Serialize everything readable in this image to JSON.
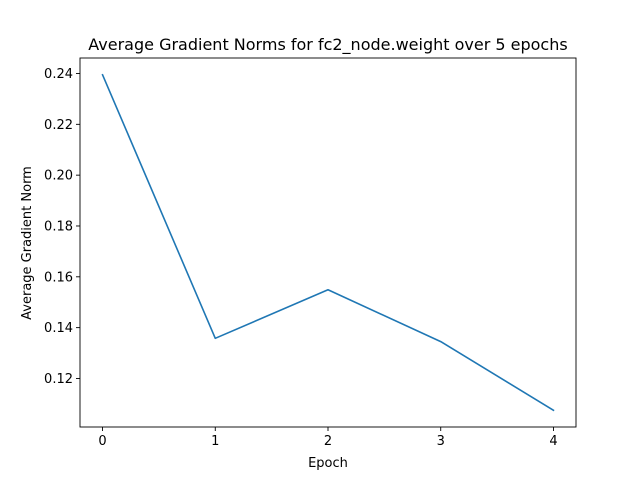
{
  "chart_data": {
    "type": "line",
    "title": "Average Gradient Norms for fc2_node.weight over 5 epochs",
    "xlabel": "Epoch",
    "ylabel": "Average Gradient Norm",
    "x": [
      0,
      1,
      2,
      3,
      4
    ],
    "series": [
      {
        "values": [
          0.2395,
          0.1358,
          0.1549,
          0.1345,
          0.1075
        ],
        "color": "#1f77b4"
      }
    ],
    "xlim": [
      -0.2,
      4.2
    ],
    "ylim": [
      0.1009,
      0.2461
    ],
    "xticks": [
      0,
      1,
      2,
      3,
      4
    ],
    "yticks": [
      0.12,
      0.14,
      0.16,
      0.18,
      0.2,
      0.22,
      0.24
    ],
    "xtick_labels": [
      "0",
      "1",
      "2",
      "3",
      "4"
    ],
    "ytick_labels": [
      "0.12",
      "0.14",
      "0.16",
      "0.18",
      "0.20",
      "0.22",
      "0.24"
    ],
    "grid": false,
    "legend": "none"
  }
}
